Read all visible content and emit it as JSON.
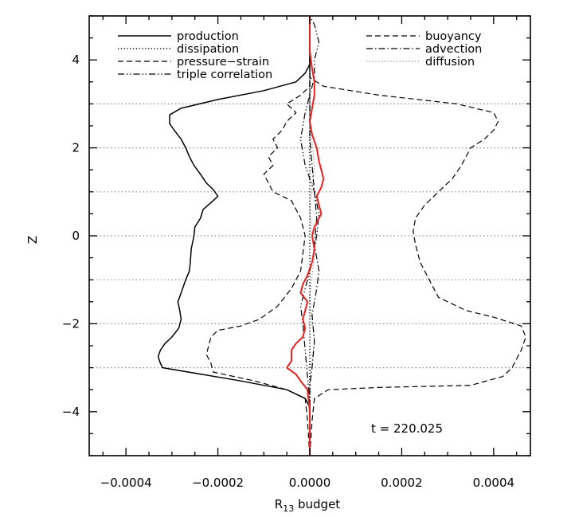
{
  "chart_data": {
    "type": "line",
    "title": "",
    "xlabel_main": "R",
    "xlabel_sub": "13",
    "xlabel_tail": " budget",
    "ylabel": "Z",
    "annotation": "t  =  220.025",
    "xlim": [
      -0.00048,
      0.00048
    ],
    "ylim": [
      -5,
      5
    ],
    "x_ticks": [
      -0.0004,
      -0.0002,
      0.0,
      0.0002,
      0.0004
    ],
    "x_tick_labels": [
      "−0.0004",
      "−0.0002",
      "0.0000",
      "0.0002",
      "0.0004"
    ],
    "y_ticks": [
      -4,
      -2,
      0,
      2,
      4
    ],
    "y_tick_labels": [
      "−4",
      "−2",
      "0",
      "2",
      "4"
    ],
    "grid": "dotted horizontal lines at z = -3, -2, -1, 0, 1, 2, 3",
    "grid_y": [
      -3,
      -2,
      -1,
      0,
      1,
      2,
      3
    ],
    "legend_left": [
      "production",
      "dissipation",
      "pressure−strain",
      "triple correlation"
    ],
    "legend_right": [
      "buoyancy",
      "advection",
      "diffusion"
    ],
    "series": [
      {
        "name": "production",
        "style": "solid",
        "color": "#000000",
        "points": [
          [
            0,
            -5
          ],
          [
            0,
            -3.9
          ],
          [
            -1e-05,
            -3.7
          ],
          [
            -5e-05,
            -3.5
          ],
          [
            -0.00015,
            -3.3
          ],
          [
            -0.00032,
            -3.0
          ],
          [
            -0.000325,
            -2.9
          ],
          [
            -0.00033,
            -2.75
          ],
          [
            -0.000325,
            -2.6
          ],
          [
            -0.000315,
            -2.45
          ],
          [
            -0.0003,
            -2.3
          ],
          [
            -0.000285,
            -2.1
          ],
          [
            -0.00028,
            -1.9
          ],
          [
            -0.000283,
            -1.7
          ],
          [
            -0.000287,
            -1.5
          ],
          [
            -0.00028,
            -1.3
          ],
          [
            -0.00027,
            -1.0
          ],
          [
            -0.000262,
            -0.8
          ],
          [
            -0.00026,
            -0.6
          ],
          [
            -0.000258,
            -0.3
          ],
          [
            -0.000252,
            0.0
          ],
          [
            -0.00025,
            0.2
          ],
          [
            -0.000238,
            0.4
          ],
          [
            -0.000232,
            0.6
          ],
          [
            -0.00021,
            0.8
          ],
          [
            -0.0002,
            0.9
          ],
          [
            -0.00021,
            1.05
          ],
          [
            -0.000225,
            1.2
          ],
          [
            -0.000238,
            1.4
          ],
          [
            -0.000252,
            1.6
          ],
          [
            -0.000262,
            1.8
          ],
          [
            -0.00027,
            2.0
          ],
          [
            -0.00028,
            2.2
          ],
          [
            -0.000295,
            2.4
          ],
          [
            -0.000305,
            2.55
          ],
          [
            -0.000305,
            2.75
          ],
          [
            -0.00028,
            2.9
          ],
          [
            -0.0002,
            3.1
          ],
          [
            -0.0001,
            3.3
          ],
          [
            -3e-05,
            3.5
          ],
          [
            -1e-05,
            3.7
          ],
          [
            0,
            3.9
          ],
          [
            0,
            5
          ]
        ]
      },
      {
        "name": "dissipation",
        "style": "dotted",
        "color": "#000000",
        "points": [
          [
            0,
            -5
          ],
          [
            0,
            5
          ]
        ]
      },
      {
        "name": "pressure−strain",
        "style": "dashed",
        "color": "#000000",
        "points": [
          [
            0,
            -5
          ],
          [
            -5e-06,
            -4.2
          ],
          [
            -1e-05,
            -3.7
          ],
          [
            -5e-05,
            -3.5
          ],
          [
            -0.00012,
            -3.3
          ],
          [
            -0.00021,
            -3.1
          ],
          [
            -0.000215,
            -2.9
          ],
          [
            -0.000225,
            -2.7
          ],
          [
            -0.00022,
            -2.5
          ],
          [
            -0.000215,
            -2.3
          ],
          [
            -0.0002,
            -2.15
          ],
          [
            -0.00015,
            -2.05
          ],
          [
            -0.00011,
            -1.9
          ],
          [
            -7e-05,
            -1.6
          ],
          [
            -4e-05,
            -1.2
          ],
          [
            -2e-05,
            -0.8
          ],
          [
            -1e-05,
            0.0
          ],
          [
            -2e-05,
            0.4
          ],
          [
            -4e-05,
            0.8
          ],
          [
            -8e-05,
            1.0
          ],
          [
            -9e-05,
            1.2
          ],
          [
            -0.0001,
            1.4
          ],
          [
            -8e-05,
            1.6
          ],
          [
            -9e-05,
            1.8
          ],
          [
            -7e-05,
            2.0
          ],
          [
            -8e-05,
            2.2
          ],
          [
            -6e-05,
            2.4
          ],
          [
            -5e-05,
            2.6
          ],
          [
            -3e-05,
            2.8
          ],
          [
            -5e-05,
            3.0
          ],
          [
            -2e-05,
            3.2
          ],
          [
            0,
            3.4
          ],
          [
            0,
            5
          ]
        ]
      },
      {
        "name": "triple correlation",
        "style": "dashdotdot",
        "color": "#000000",
        "points": [
          [
            0,
            -5
          ],
          [
            0,
            -3.8
          ],
          [
            -5e-06,
            -3.2
          ],
          [
            -1e-05,
            -2.6
          ],
          [
            -1.5e-05,
            -2.0
          ],
          [
            -2e-05,
            -1.6
          ],
          [
            -1e-05,
            -1.2
          ],
          [
            5e-06,
            -0.6
          ],
          [
            1.5e-05,
            0.0
          ],
          [
            2e-05,
            0.5
          ],
          [
            1e-05,
            1.0
          ],
          [
            -1e-05,
            1.6
          ],
          [
            -2e-05,
            2.2
          ],
          [
            -1e-05,
            2.8
          ],
          [
            0,
            3.2
          ],
          [
            1e-05,
            3.6
          ],
          [
            1e-05,
            4.0
          ],
          [
            2e-05,
            4.4
          ],
          [
            1e-05,
            4.8
          ],
          [
            0,
            5
          ]
        ]
      },
      {
        "name": "buoyancy",
        "style": "dashed",
        "color": "#000000",
        "points": [
          [
            0,
            -5
          ],
          [
            5e-06,
            -4.2
          ],
          [
            1e-05,
            -3.7
          ],
          [
            4e-05,
            -3.5
          ],
          [
            0.00015,
            -3.45
          ],
          [
            0.00035,
            -3.4
          ],
          [
            0.00042,
            -3.2
          ],
          [
            0.00044,
            -3.0
          ],
          [
            0.00046,
            -2.6
          ],
          [
            0.00047,
            -2.3
          ],
          [
            0.00046,
            -2.05
          ],
          [
            0.0004,
            -1.85
          ],
          [
            0.00034,
            -1.7
          ],
          [
            0.00028,
            -1.4
          ],
          [
            0.00026,
            -1.0
          ],
          [
            0.00024,
            -0.6
          ],
          [
            0.00023,
            -0.2
          ],
          [
            0.000225,
            0.1
          ],
          [
            0.00023,
            0.4
          ],
          [
            0.00025,
            0.7
          ],
          [
            0.00028,
            1.0
          ],
          [
            0.00031,
            1.3
          ],
          [
            0.00033,
            1.6
          ],
          [
            0.00035,
            2.0
          ],
          [
            0.00038,
            2.2
          ],
          [
            0.0004,
            2.4
          ],
          [
            0.00041,
            2.6
          ],
          [
            0.0004,
            2.8
          ],
          [
            0.00032,
            3.0
          ],
          [
            0.00015,
            3.2
          ],
          [
            3e-05,
            3.4
          ],
          [
            0,
            3.6
          ],
          [
            0,
            5
          ]
        ]
      },
      {
        "name": "advection",
        "style": "dashdot",
        "color": "#000000",
        "points": [
          [
            0,
            -5
          ],
          [
            0,
            -3.4
          ],
          [
            5e-06,
            -3.0
          ],
          [
            1e-05,
            -2.4
          ],
          [
            5e-06,
            -1.8
          ],
          [
            1.5e-05,
            -1.2
          ],
          [
            2e-05,
            -0.8
          ],
          [
            1e-05,
            -0.2
          ],
          [
            1.5e-05,
            0.4
          ],
          [
            1e-05,
            1.0
          ],
          [
            5e-06,
            1.6
          ],
          [
            0,
            2.2
          ],
          [
            0,
            3.0
          ],
          [
            0,
            5
          ]
        ]
      },
      {
        "name": "diffusion",
        "style": "dotted-gray",
        "color": "#888888",
        "points": [
          [
            0,
            -5
          ],
          [
            0,
            -3.2
          ],
          [
            1e-05,
            -2.4
          ],
          [
            0,
            -1.4
          ],
          [
            1e-05,
            -0.4
          ],
          [
            0,
            0.6
          ],
          [
            1e-05,
            1.6
          ],
          [
            0,
            2.6
          ],
          [
            0,
            5
          ]
        ]
      },
      {
        "name": "",
        "style": "solid",
        "color": "#e8201e",
        "points": [
          [
            0,
            -5
          ],
          [
            0,
            -4.0
          ],
          [
            -5e-06,
            -3.5
          ],
          [
            -2e-05,
            -3.3
          ],
          [
            -3e-05,
            -3.15
          ],
          [
            -5e-05,
            -3.0
          ],
          [
            -4e-05,
            -2.85
          ],
          [
            -4e-05,
            -2.6
          ],
          [
            -3e-05,
            -2.45
          ],
          [
            -1.5e-05,
            -2.3
          ],
          [
            -1e-05,
            -2.1
          ],
          [
            -1.5e-05,
            -1.9
          ],
          [
            -1e-05,
            -1.7
          ],
          [
            -5e-06,
            -1.5
          ],
          [
            -2e-05,
            -1.3
          ],
          [
            -1.5e-05,
            -1.1
          ],
          [
            -5e-06,
            -0.9
          ],
          [
            5e-06,
            -0.6
          ],
          [
            1e-05,
            -0.3
          ],
          [
            5e-06,
            0.0
          ],
          [
            1e-05,
            0.2
          ],
          [
            2.5e-05,
            0.5
          ],
          [
            2e-05,
            0.7
          ],
          [
            1.5e-05,
            0.9
          ],
          [
            2.5e-05,
            1.1
          ],
          [
            3e-05,
            1.3
          ],
          [
            2.5e-05,
            1.5
          ],
          [
            2e-05,
            1.7
          ],
          [
            1.5e-05,
            2.0
          ],
          [
            5e-06,
            2.3
          ],
          [
            0,
            2.6
          ],
          [
            5e-06,
            2.9
          ],
          [
            1e-05,
            3.2
          ],
          [
            1e-05,
            3.5
          ],
          [
            5e-06,
            3.8
          ],
          [
            0,
            4.2
          ],
          [
            0,
            5
          ]
        ]
      }
    ]
  }
}
